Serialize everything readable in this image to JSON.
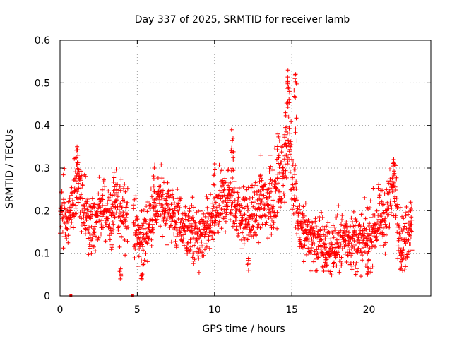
{
  "chart_data": {
    "type": "scatter",
    "title": "Day 337 of 2025, SRMTID for receiver lamb",
    "xlabel": "GPS time / hours",
    "ylabel": "SRMTID / TECUs",
    "xlim": [
      0,
      24
    ],
    "ylim": [
      0,
      0.6
    ],
    "xticks": [
      0,
      5,
      10,
      15,
      20
    ],
    "yticks": [
      0,
      0.1,
      0.2,
      0.3,
      0.4,
      0.5,
      0.6
    ],
    "xtick_labels": [
      "0",
      "5",
      "10",
      "15",
      "20"
    ],
    "ytick_labels": [
      "0",
      "0.1",
      "0.2",
      "0.3",
      "0.4",
      "0.5",
      "0.6"
    ],
    "grid": true,
    "marker": "+",
    "series": [
      {
        "name": "SRMTID",
        "color": "#ff0000",
        "trend": [
          [
            0.0,
            0.2
          ],
          [
            0.4,
            0.18
          ],
          [
            0.8,
            0.22
          ],
          [
            1.0,
            0.25
          ],
          [
            1.2,
            0.28
          ],
          [
            1.5,
            0.2
          ],
          [
            2.0,
            0.17
          ],
          [
            2.5,
            0.19
          ],
          [
            3.0,
            0.21
          ],
          [
            3.3,
            0.17
          ],
          [
            3.6,
            0.22
          ],
          [
            3.8,
            0.18
          ],
          [
            4.1,
            0.22
          ],
          [
            4.3,
            0.2
          ],
          [
            4.8,
            0.17
          ],
          [
            5.2,
            0.12
          ],
          [
            5.5,
            0.14
          ],
          [
            6.0,
            0.2
          ],
          [
            6.5,
            0.22
          ],
          [
            7.0,
            0.21
          ],
          [
            7.5,
            0.18
          ],
          [
            8.0,
            0.16
          ],
          [
            8.5,
            0.15
          ],
          [
            9.0,
            0.13
          ],
          [
            9.5,
            0.15
          ],
          [
            10.0,
            0.18
          ],
          [
            10.5,
            0.22
          ],
          [
            11.0,
            0.24
          ],
          [
            11.5,
            0.2
          ],
          [
            12.0,
            0.18
          ],
          [
            12.5,
            0.19
          ],
          [
            13.0,
            0.21
          ],
          [
            13.5,
            0.22
          ],
          [
            14.0,
            0.24
          ],
          [
            14.5,
            0.3
          ],
          [
            14.8,
            0.38
          ],
          [
            15.0,
            0.3
          ],
          [
            15.2,
            0.26
          ],
          [
            15.5,
            0.16
          ],
          [
            16.0,
            0.14
          ],
          [
            16.5,
            0.13
          ],
          [
            17.0,
            0.12
          ],
          [
            17.5,
            0.11
          ],
          [
            18.0,
            0.12
          ],
          [
            18.5,
            0.14
          ],
          [
            19.0,
            0.13
          ],
          [
            19.5,
            0.12
          ],
          [
            20.0,
            0.14
          ],
          [
            20.5,
            0.17
          ],
          [
            21.0,
            0.18
          ],
          [
            21.5,
            0.24
          ],
          [
            21.7,
            0.27
          ],
          [
            22.0,
            0.13
          ],
          [
            22.3,
            0.12
          ],
          [
            22.6,
            0.17
          ]
        ],
        "extremes": [
          [
            1.1,
            0.35
          ],
          [
            1.15,
            0.33
          ],
          [
            3.5,
            0.29
          ],
          [
            3.9,
            0.04
          ],
          [
            5.3,
            0.04
          ],
          [
            6.1,
            0.3
          ],
          [
            10.0,
            0.31
          ],
          [
            11.1,
            0.39
          ],
          [
            11.2,
            0.37
          ],
          [
            13.0,
            0.33
          ],
          [
            13.6,
            0.33
          ],
          [
            14.1,
            0.38
          ],
          [
            14.6,
            0.43
          ],
          [
            14.7,
            0.5
          ],
          [
            14.75,
            0.53
          ],
          [
            14.85,
            0.48
          ],
          [
            15.2,
            0.51
          ],
          [
            15.25,
            0.52
          ],
          [
            15.3,
            0.42
          ],
          [
            12.2,
            0.06
          ],
          [
            17.2,
            0.07
          ],
          [
            19.9,
            0.05
          ],
          [
            21.6,
            0.32
          ],
          [
            22.1,
            0.07
          ],
          [
            22.7,
            0.22
          ]
        ],
        "zero_markers": [
          0.7,
          4.7
        ],
        "gaps": [
          [
            4.4,
            4.75
          ],
          [
            22.8,
            24
          ]
        ]
      }
    ]
  }
}
